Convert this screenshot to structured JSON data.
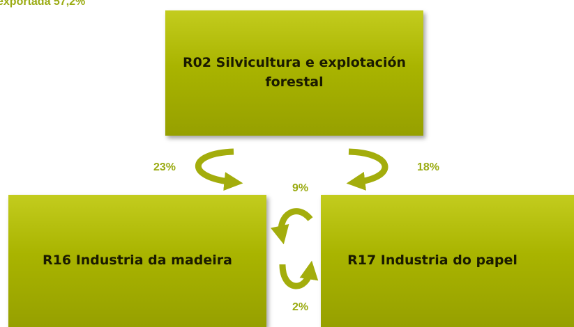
{
  "header": {
    "title": "exportada  57,2%"
  },
  "nodes": [
    {
      "label": "R02 Silvicultura e explotación forestal"
    },
    {
      "label": "R16 Industria da madeira"
    },
    {
      "label": "R17 Industria do papel"
    }
  ],
  "edges": [
    {
      "label": "23%"
    },
    {
      "label": "18%"
    },
    {
      "label": "9%"
    },
    {
      "label": "2%"
    }
  ]
}
